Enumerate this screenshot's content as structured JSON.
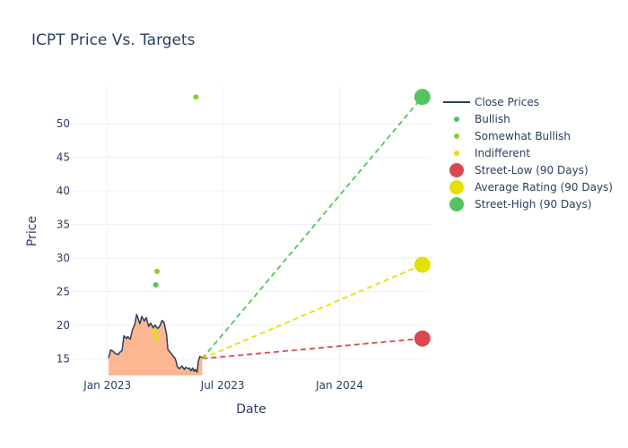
{
  "chart_data": {
    "type": "line",
    "title": "ICPT Price Vs. Targets",
    "xlabel": "Date",
    "ylabel": "Price",
    "x_range": [
      "2022-11-06",
      "2024-05-23"
    ],
    "y_range": [
      12.5,
      55.5
    ],
    "x_ticks": [
      {
        "date": "2023-01-01",
        "label": "Jan 2023"
      },
      {
        "date": "2023-07-01",
        "label": "Jul 2023"
      },
      {
        "date": "2024-01-01",
        "label": "Jan 2024"
      }
    ],
    "y_ticks": [
      15,
      20,
      25,
      30,
      35,
      40,
      45,
      50
    ],
    "grid": true,
    "legend_position": "right",
    "close_prices": {
      "name": "Close Prices",
      "color": "#2a3f5f",
      "fill_color": "#fbb692",
      "x": [
        "2023-01-03",
        "2023-01-06",
        "2023-01-10",
        "2023-01-13",
        "2023-01-18",
        "2023-01-20",
        "2023-01-24",
        "2023-01-27",
        "2023-01-31",
        "2023-02-02",
        "2023-02-06",
        "2023-02-09",
        "2023-02-13",
        "2023-02-16",
        "2023-02-21",
        "2023-02-24",
        "2023-02-28",
        "2023-03-03",
        "2023-03-07",
        "2023-03-10",
        "2023-03-14",
        "2023-03-17",
        "2023-03-21",
        "2023-03-24",
        "2023-03-28",
        "2023-03-31",
        "2023-04-04",
        "2023-04-06",
        "2023-04-10",
        "2023-04-12",
        "2023-04-14",
        "2023-04-17",
        "2023-04-19",
        "2023-04-21",
        "2023-04-24",
        "2023-04-26",
        "2023-04-28",
        "2023-05-02",
        "2023-05-04",
        "2023-05-08",
        "2023-05-10",
        "2023-05-12",
        "2023-05-15",
        "2023-05-17",
        "2023-05-19",
        "2023-05-22",
        "2023-05-24",
        "2023-05-26",
        "2023-05-30"
      ],
      "y": [
        15.1,
        16.3,
        16.1,
        15.8,
        15.6,
        15.9,
        16.2,
        18.4,
        18.0,
        18.3,
        17.9,
        19.2,
        20.1,
        21.6,
        20.2,
        21.3,
        20.6,
        21.1,
        19.8,
        20.3,
        19.6,
        20.0,
        19.5,
        19.8,
        20.7,
        20.4,
        18.6,
        16.4,
        15.9,
        15.7,
        15.4,
        15.1,
        14.6,
        13.8,
        13.5,
        13.7,
        13.9,
        13.4,
        13.7,
        13.5,
        13.6,
        13.2,
        13.6,
        13.1,
        13.4,
        13.0,
        14.6,
        15.3,
        15.2
      ]
    },
    "ratings": [
      {
        "name": "Bullish",
        "color": "#54c45e",
        "points": [
          {
            "x": "2023-03-18",
            "y": 26.0
          }
        ]
      },
      {
        "name": "Somewhat Bullish",
        "color": "#8ace2a",
        "points": [
          {
            "x": "2023-03-20",
            "y": 28.0
          },
          {
            "x": "2023-05-20",
            "y": 54.0
          }
        ]
      },
      {
        "name": "Indifferent",
        "color": "#e5e000",
        "points": [
          {
            "x": "2023-03-17",
            "y": 19.0
          },
          {
            "x": "2023-03-19",
            "y": 18.0
          }
        ]
      }
    ],
    "targets": {
      "start": {
        "x": "2023-05-30",
        "y": 15.0
      },
      "end_x": "2024-05-10",
      "lines": [
        {
          "name": "Street-Low (90 Days)",
          "color": "#d9484e",
          "value": 18.0
        },
        {
          "name": "Average Rating (90 Days)",
          "color": "#e5e000",
          "value": 29.0
        },
        {
          "name": "Street-High (90 Days)",
          "color": "#54c45e",
          "value": 54.0
        }
      ]
    },
    "legend": [
      {
        "label": "Close Prices",
        "kind": "line",
        "color": "#2a3f5f"
      },
      {
        "label": "Bullish",
        "kind": "small",
        "color": "#54c45e"
      },
      {
        "label": "Somewhat Bullish",
        "kind": "small",
        "color": "#8ace2a"
      },
      {
        "label": "Indifferent",
        "kind": "small",
        "color": "#e5e000"
      },
      {
        "label": "Street-Low (90 Days)",
        "kind": "large",
        "color": "#d9484e"
      },
      {
        "label": "Average Rating (90 Days)",
        "kind": "large",
        "color": "#e5e000"
      },
      {
        "label": "Street-High (90 Days)",
        "kind": "large",
        "color": "#54c45e"
      }
    ]
  }
}
